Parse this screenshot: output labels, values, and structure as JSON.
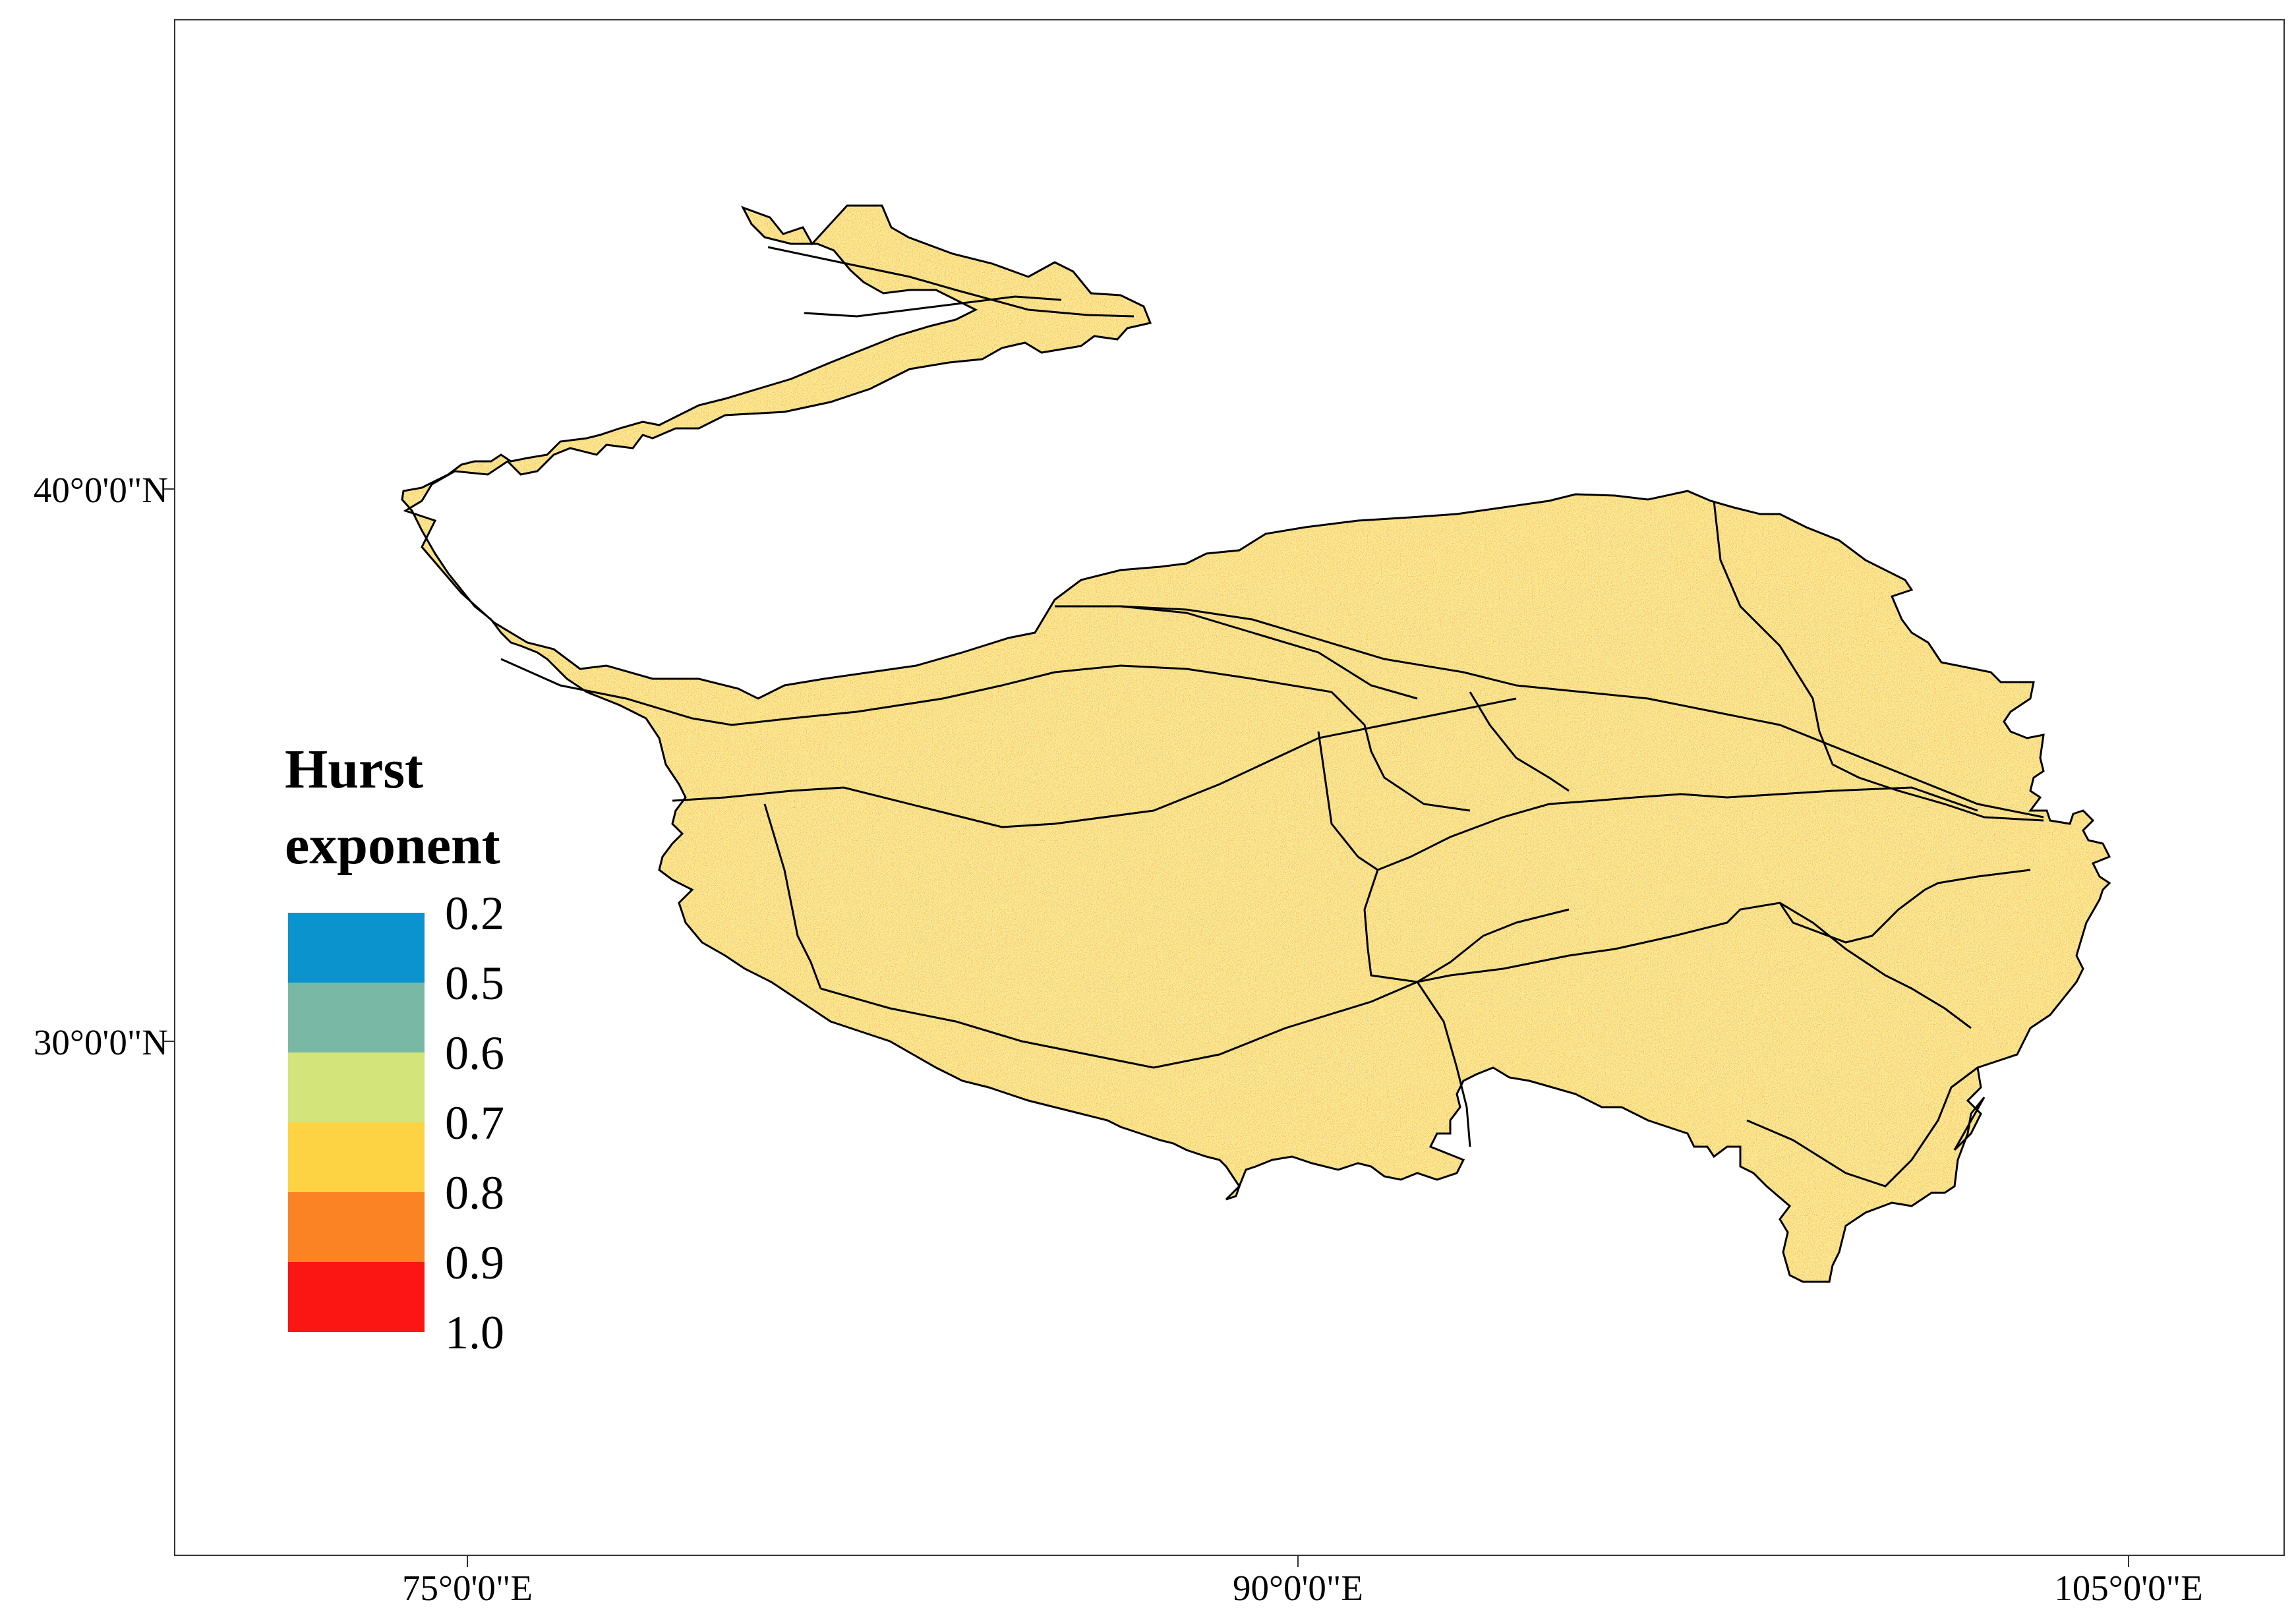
{
  "map": {
    "axes": {
      "x_ticks": [
        {
          "label": "75°0'0\"E"
        },
        {
          "label": "90°0'0\"E"
        },
        {
          "label": "105°0'0\"E"
        }
      ],
      "y_ticks": [
        {
          "label": "40°0'0\"N"
        },
        {
          "label": "30°0'0\"N"
        }
      ]
    },
    "legend": {
      "title_line1": "Hurst",
      "title_line2": "exponent",
      "breaks": [
        "0.2",
        "0.5",
        "0.6",
        "0.7",
        "0.8",
        "0.9",
        "1.0"
      ],
      "colors": [
        "#0a93cc",
        "#7ab8a6",
        "#d2e47a",
        "#fdd343",
        "#fb8324",
        "#fb1513"
      ]
    },
    "colors": {
      "frame": "#333333",
      "boundary": "#000000",
      "fill_base": "#f0b656"
    }
  }
}
